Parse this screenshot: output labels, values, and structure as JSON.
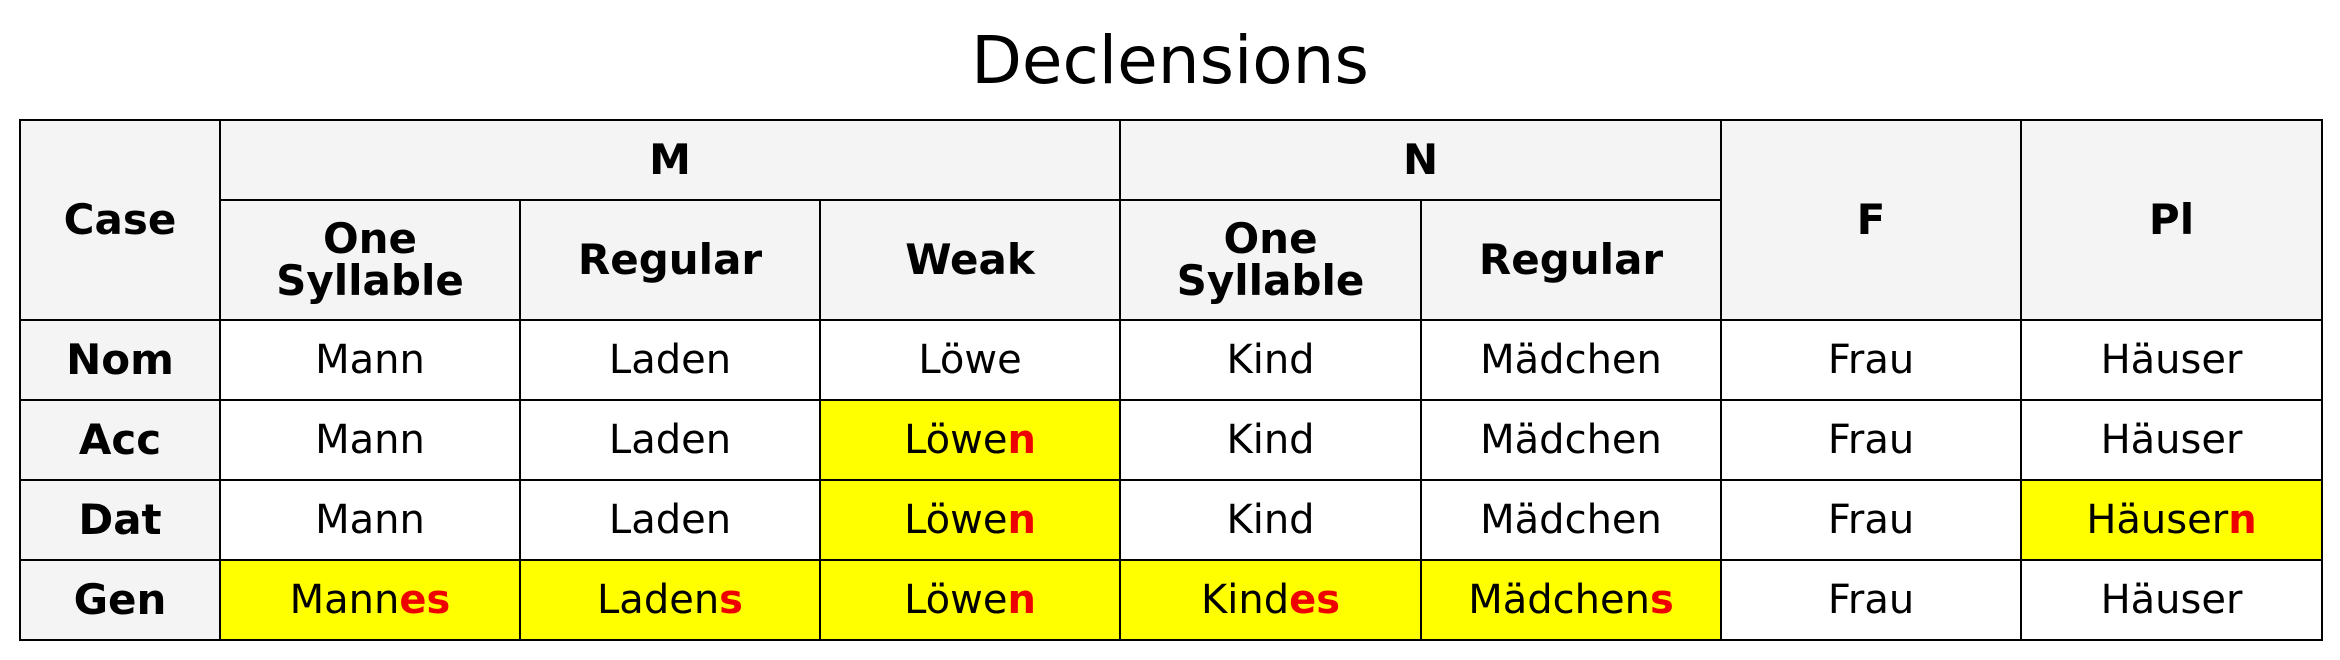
{
  "title": "Declensions",
  "header": {
    "case": "Case",
    "groups": {
      "m": "M",
      "n": "N",
      "f": "F",
      "pl": "Pl"
    },
    "sub": {
      "m_one": "One Syllable",
      "m_regular": "Regular",
      "m_weak": "Weak",
      "n_one": "One Syllable",
      "n_regular": "Regular"
    }
  },
  "rows": [
    {
      "case": "Nom",
      "cells": [
        {
          "stem": "Mann",
          "ending": "",
          "highlight": false
        },
        {
          "stem": "Laden",
          "ending": "",
          "highlight": false
        },
        {
          "stem": "Löwe",
          "ending": "",
          "highlight": false
        },
        {
          "stem": "Kind",
          "ending": "",
          "highlight": false
        },
        {
          "stem": "Mädchen",
          "ending": "",
          "highlight": false
        },
        {
          "stem": "Frau",
          "ending": "",
          "highlight": false
        },
        {
          "stem": "Häuser",
          "ending": "",
          "highlight": false
        }
      ]
    },
    {
      "case": "Acc",
      "cells": [
        {
          "stem": "Mann",
          "ending": "",
          "highlight": false
        },
        {
          "stem": "Laden",
          "ending": "",
          "highlight": false
        },
        {
          "stem": "Löwe",
          "ending": "n",
          "highlight": true
        },
        {
          "stem": "Kind",
          "ending": "",
          "highlight": false
        },
        {
          "stem": "Mädchen",
          "ending": "",
          "highlight": false
        },
        {
          "stem": "Frau",
          "ending": "",
          "highlight": false
        },
        {
          "stem": "Häuser",
          "ending": "",
          "highlight": false
        }
      ]
    },
    {
      "case": "Dat",
      "cells": [
        {
          "stem": "Mann",
          "ending": "",
          "highlight": false
        },
        {
          "stem": "Laden",
          "ending": "",
          "highlight": false
        },
        {
          "stem": "Löwe",
          "ending": "n",
          "highlight": true
        },
        {
          "stem": "Kind",
          "ending": "",
          "highlight": false
        },
        {
          "stem": "Mädchen",
          "ending": "",
          "highlight": false
        },
        {
          "stem": "Frau",
          "ending": "",
          "highlight": false
        },
        {
          "stem": "Häuser",
          "ending": "n",
          "highlight": true
        }
      ]
    },
    {
      "case": "Gen",
      "cells": [
        {
          "stem": "Mann",
          "ending": "es",
          "highlight": true
        },
        {
          "stem": "Laden",
          "ending": "s",
          "highlight": true
        },
        {
          "stem": "Löwe",
          "ending": "n",
          "highlight": true
        },
        {
          "stem": "Kind",
          "ending": "es",
          "highlight": true
        },
        {
          "stem": "Mädchen",
          "ending": "s",
          "highlight": true
        },
        {
          "stem": "Frau",
          "ending": "",
          "highlight": false
        },
        {
          "stem": "Häuser",
          "ending": "",
          "highlight": false
        }
      ]
    }
  ],
  "colors": {
    "highlight": "#ffff00",
    "ending": "#ee0000",
    "header_bg": "#f4f4f4"
  }
}
